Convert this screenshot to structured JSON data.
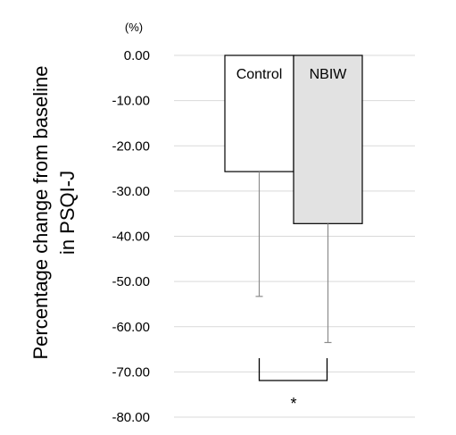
{
  "chart_data": {
    "type": "bar",
    "unit_label": "(%)",
    "ylabel_line1": "Percentage change from baseline",
    "ylabel_line2": "in PSQI-J",
    "categories": [
      "Control",
      "NBIW"
    ],
    "values": [
      -25.7,
      -37.2
    ],
    "error_lower": [
      -53.3,
      -63.5
    ],
    "ylim": [
      -80,
      0
    ],
    "yticks": [
      0,
      -10,
      -20,
      -30,
      -40,
      -50,
      -60,
      -70,
      -80
    ],
    "ytick_labels": [
      "0.00",
      "-10.00",
      "-20.00",
      "-30.00",
      "-40.00",
      "-50.00",
      "-60.00",
      "-70.00",
      "-80.00"
    ],
    "significance_marker": "*",
    "grid": true,
    "colors": {
      "Control": "#ffffff",
      "NBIW": "#e2e2e2",
      "grid": "#d9d9d9",
      "error_bar": "#8c8c8c",
      "outline": "#000000"
    }
  }
}
